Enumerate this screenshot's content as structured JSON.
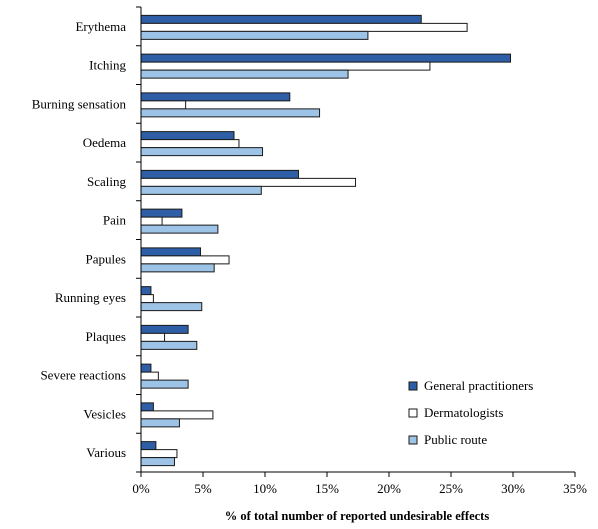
{
  "chart_data": {
    "type": "bar",
    "orientation": "horizontal",
    "categories": [
      "Erythema",
      "Itching",
      "Burning sensation",
      "Oedema",
      "Scaling",
      "Pain",
      "Papules",
      "Running eyes",
      "Plaques",
      "Severe reactions",
      "Vesicles",
      "Various"
    ],
    "series": [
      {
        "name": "General practitioners",
        "color": "#2e5fa6",
        "values": [
          22.6,
          29.8,
          12.0,
          7.5,
          12.7,
          3.3,
          4.8,
          0.8,
          3.8,
          0.8,
          1.0,
          1.2
        ]
      },
      {
        "name": "Dermatologists",
        "color": "#ffffff",
        "values": [
          26.3,
          23.3,
          3.6,
          7.9,
          17.3,
          1.7,
          7.1,
          1.0,
          1.9,
          1.4,
          5.8,
          2.9
        ]
      },
      {
        "name": "Public route",
        "color": "#9dc3e6",
        "values": [
          18.3,
          16.7,
          14.4,
          9.8,
          9.7,
          6.2,
          5.9,
          4.9,
          4.5,
          3.8,
          3.1,
          2.7
        ]
      }
    ],
    "xlabel": "% of total number of reported undesirable effects",
    "ylabel": "",
    "xlim": [
      0,
      35
    ],
    "xticks": [
      0,
      5,
      10,
      15,
      20,
      25,
      30,
      35
    ],
    "xtick_labels": [
      "0%",
      "5%",
      "10%",
      "15%",
      "20%",
      "25%",
      "30%",
      "35%"
    ],
    "grid": false,
    "legend_position": "bottom-right"
  }
}
